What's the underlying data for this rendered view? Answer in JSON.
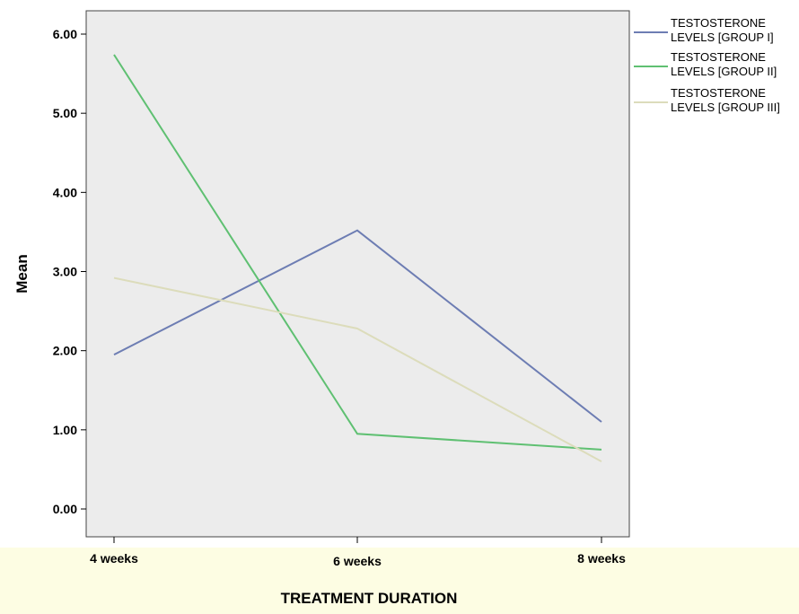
{
  "chart_data": {
    "type": "line",
    "xlabel": "TREATMENT DURATION",
    "ylabel": "Mean",
    "categories": [
      "4 weeks",
      "6 weeks",
      "8 weeks"
    ],
    "ylim": [
      0,
      6
    ],
    "yticks": [
      "0.00",
      "1.00",
      "2.00",
      "3.00",
      "4.00",
      "5.00",
      "6.00"
    ],
    "grid": false,
    "legend_position": "right",
    "plot_background": "#ececec",
    "xaxis_band_color": "#fdfde3",
    "series": [
      {
        "name_lines": [
          "TESTOSTERONE",
          "LEVELS [GROUP I]"
        ],
        "color": "#6d7db3",
        "values": [
          1.95,
          3.52,
          1.1
        ]
      },
      {
        "name_lines": [
          "TESTOSTERONE",
          "LEVELS [GROUP II]"
        ],
        "color": "#5fc072",
        "values": [
          5.74,
          0.95,
          0.75
        ]
      },
      {
        "name_lines": [
          "TESTOSTERONE",
          "LEVELS [GROUP III]"
        ],
        "color": "#dcdcbb",
        "values": [
          2.92,
          2.28,
          0.6
        ]
      }
    ]
  }
}
